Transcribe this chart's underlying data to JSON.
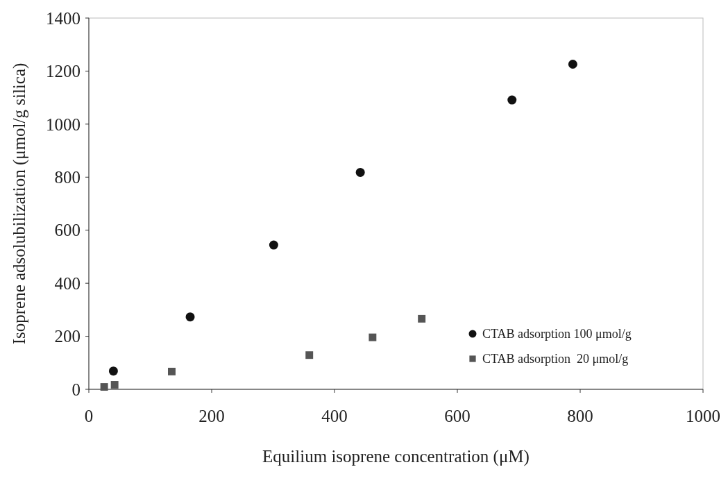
{
  "chart_data": {
    "type": "scatter",
    "xlabel": "Equilium isoprene concentration (μM)",
    "ylabel": "Isoprene adsolubilization (μmol/g silica)",
    "xlim": [
      0,
      1000
    ],
    "xticks": [
      0,
      200,
      400,
      600,
      800,
      1000
    ],
    "ylim": [
      0,
      1400
    ],
    "yticks": [
      0,
      200,
      400,
      600,
      800,
      1000,
      1200,
      1400
    ],
    "grid": false,
    "legend": "bottom right",
    "series": [
      {
        "name": "CTAB adsorption 100 μmol/g",
        "color": "#111111",
        "marker": "circle",
        "x": [
          40,
          165,
          301,
          442,
          689,
          788
        ],
        "values": [
          69,
          273,
          544,
          818,
          1091,
          1226
        ]
      },
      {
        "name": "CTAB adsorption  20 μmol/g",
        "color": "#555555",
        "marker": "square",
        "x": [
          25,
          42,
          135,
          359,
          462,
          542
        ],
        "values": [
          9,
          17,
          67,
          129,
          196,
          266
        ]
      }
    ]
  }
}
